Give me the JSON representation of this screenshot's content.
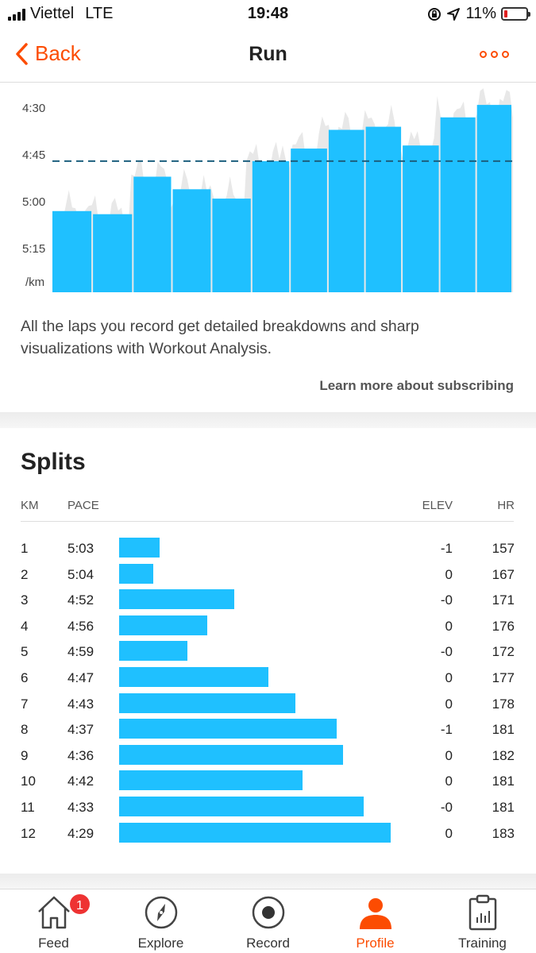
{
  "status_bar": {
    "carrier": "Viettel",
    "network": "LTE",
    "time": "19:48",
    "battery": "11%"
  },
  "nav": {
    "back_label": "Back",
    "title": "Run"
  },
  "chart_data": {
    "type": "bar",
    "yticks": [
      "4:30",
      "4:45",
      "5:00",
      "5:15"
    ],
    "y_unit": "/km",
    "reference_pace": "4:47",
    "laps": [
      {
        "pace": "5:03"
      },
      {
        "pace": "5:04"
      },
      {
        "pace": "4:52"
      },
      {
        "pace": "4:56"
      },
      {
        "pace": "4:59"
      },
      {
        "pace": "4:47"
      },
      {
        "pace": "4:43"
      },
      {
        "pace": "4:37"
      },
      {
        "pace": "4:36"
      },
      {
        "pace": "4:42"
      },
      {
        "pace": "4:33"
      },
      {
        "pace": "4:29"
      }
    ],
    "colors": {
      "bar": "#1fc0ff",
      "background_trace": "#e8e8e8",
      "reference_line": "#1c5f7e"
    }
  },
  "description": "All the laps you record get detailed breakdowns and sharp visualizations with Workout Analysis.",
  "learn_more": "Learn more about subscribing",
  "splits": {
    "title": "Splits",
    "headers": {
      "km": "KM",
      "pace": "PACE",
      "elev": "ELEV",
      "hr": "HR"
    },
    "rows": [
      {
        "km": "1",
        "pace": "5:03",
        "elev": "-1",
        "hr": "157",
        "pace_seconds": 303
      },
      {
        "km": "2",
        "pace": "5:04",
        "elev": "0",
        "hr": "167",
        "pace_seconds": 304
      },
      {
        "km": "3",
        "pace": "4:52",
        "elev": "-0",
        "hr": "171",
        "pace_seconds": 292
      },
      {
        "km": "4",
        "pace": "4:56",
        "elev": "0",
        "hr": "176",
        "pace_seconds": 296
      },
      {
        "km": "5",
        "pace": "4:59",
        "elev": "-0",
        "hr": "172",
        "pace_seconds": 299
      },
      {
        "km": "6",
        "pace": "4:47",
        "elev": "0",
        "hr": "177",
        "pace_seconds": 287
      },
      {
        "km": "7",
        "pace": "4:43",
        "elev": "0",
        "hr": "178",
        "pace_seconds": 283
      },
      {
        "km": "8",
        "pace": "4:37",
        "elev": "-1",
        "hr": "181",
        "pace_seconds": 277
      },
      {
        "km": "9",
        "pace": "4:36",
        "elev": "0",
        "hr": "182",
        "pace_seconds": 276
      },
      {
        "km": "10",
        "pace": "4:42",
        "elev": "0",
        "hr": "181",
        "pace_seconds": 282
      },
      {
        "km": "11",
        "pace": "4:33",
        "elev": "-0",
        "hr": "181",
        "pace_seconds": 273
      },
      {
        "km": "12",
        "pace": "4:29",
        "elev": "0",
        "hr": "183",
        "pace_seconds": 269
      }
    ]
  },
  "tabs": [
    {
      "label": "Feed",
      "icon": "home-icon",
      "badge": "1"
    },
    {
      "label": "Explore",
      "icon": "compass-icon"
    },
    {
      "label": "Record",
      "icon": "record-icon"
    },
    {
      "label": "Profile",
      "icon": "profile-icon",
      "active": true
    },
    {
      "label": "Training",
      "icon": "clipboard-chart-icon"
    }
  ],
  "colors": {
    "accent": "#fc4c02",
    "bar": "#1fc0ff"
  }
}
